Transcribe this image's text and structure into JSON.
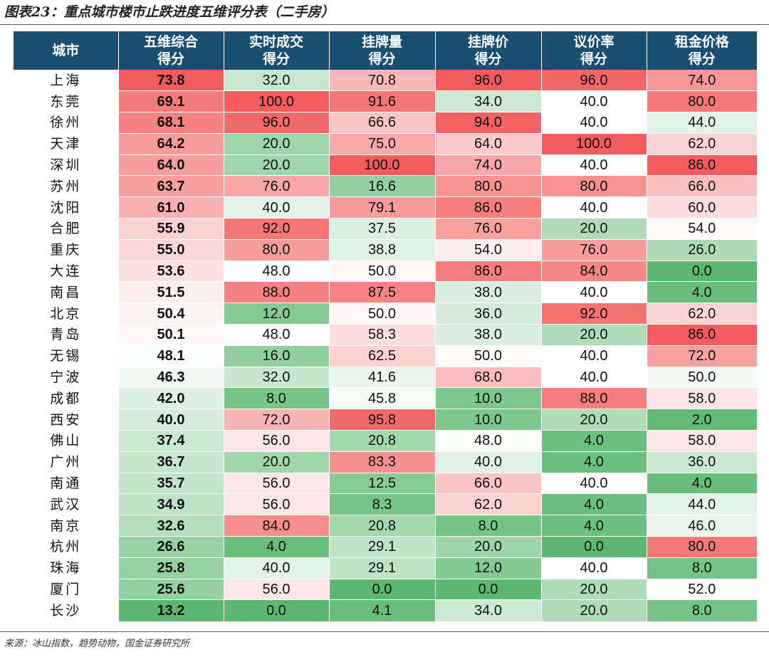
{
  "caption": "图表23：重点城市楼市止跌进度五维评分表（二手房）",
  "source": "来源：冰山指数，趋势动物，国金证券研究所",
  "colors": {
    "header_bg": "#1b4f72",
    "red_high": "#f25c5c",
    "white_mid": "#ffffff",
    "green_low": "#5cb870"
  },
  "table": {
    "headers": [
      [
        "城市"
      ],
      [
        "五维综合",
        "得分"
      ],
      [
        "实时成交",
        "得分"
      ],
      [
        "挂牌量",
        "得分"
      ],
      [
        "挂牌价",
        "得分"
      ],
      [
        "议价率",
        "得分"
      ],
      [
        "租金价格",
        "得分"
      ]
    ],
    "rows": [
      [
        "上海",
        "73.8",
        "32.0",
        "70.8",
        "96.0",
        "96.0",
        "74.0"
      ],
      [
        "东莞",
        "69.1",
        "100.0",
        "91.6",
        "34.0",
        "40.0",
        "80.0"
      ],
      [
        "徐州",
        "68.1",
        "96.0",
        "66.6",
        "94.0",
        "40.0",
        "44.0"
      ],
      [
        "天津",
        "64.2",
        "20.0",
        "75.0",
        "64.0",
        "100.0",
        "62.0"
      ],
      [
        "深圳",
        "64.0",
        "20.0",
        "100.0",
        "74.0",
        "40.0",
        "86.0"
      ],
      [
        "苏州",
        "63.7",
        "76.0",
        "16.6",
        "80.0",
        "80.0",
        "66.0"
      ],
      [
        "沈阳",
        "61.0",
        "40.0",
        "79.1",
        "86.0",
        "40.0",
        "60.0"
      ],
      [
        "合肥",
        "55.9",
        "92.0",
        "37.5",
        "76.0",
        "20.0",
        "54.0"
      ],
      [
        "重庆",
        "55.0",
        "80.0",
        "38.8",
        "54.0",
        "76.0",
        "26.0"
      ],
      [
        "大连",
        "53.6",
        "48.0",
        "50.0",
        "86.0",
        "84.0",
        "0.0"
      ],
      [
        "南昌",
        "51.5",
        "88.0",
        "87.5",
        "38.0",
        "40.0",
        "4.0"
      ],
      [
        "北京",
        "50.4",
        "12.0",
        "50.0",
        "36.0",
        "92.0",
        "62.0"
      ],
      [
        "青岛",
        "50.1",
        "48.0",
        "58.3",
        "38.0",
        "20.0",
        "86.0"
      ],
      [
        "无锡",
        "48.1",
        "16.0",
        "62.5",
        "50.0",
        "40.0",
        "72.0"
      ],
      [
        "宁波",
        "46.3",
        "32.0",
        "41.6",
        "68.0",
        "40.0",
        "50.0"
      ],
      [
        "成都",
        "42.0",
        "8.0",
        "45.8",
        "10.0",
        "88.0",
        "58.0"
      ],
      [
        "西安",
        "40.0",
        "72.0",
        "95.8",
        "10.0",
        "20.0",
        "2.0"
      ],
      [
        "佛山",
        "37.4",
        "56.0",
        "20.8",
        "48.0",
        "4.0",
        "58.0"
      ],
      [
        "广州",
        "36.7",
        "20.0",
        "83.3",
        "40.0",
        "4.0",
        "36.0"
      ],
      [
        "南通",
        "35.7",
        "56.0",
        "12.5",
        "66.0",
        "40.0",
        "4.0"
      ],
      [
        "武汉",
        "34.9",
        "56.0",
        "8.3",
        "62.0",
        "4.0",
        "44.0"
      ],
      [
        "南京",
        "32.6",
        "84.0",
        "20.8",
        "8.0",
        "4.0",
        "46.0"
      ],
      [
        "杭州",
        "26.6",
        "4.0",
        "29.1",
        "20.0",
        "0.0",
        "80.0"
      ],
      [
        "珠海",
        "25.8",
        "40.0",
        "29.1",
        "12.0",
        "40.0",
        "8.0"
      ],
      [
        "厦门",
        "25.6",
        "56.0",
        "0.0",
        "0.0",
        "20.0",
        "52.0"
      ],
      [
        "长沙",
        "13.2",
        "0.0",
        "4.1",
        "34.0",
        "20.0",
        "8.0"
      ]
    ]
  }
}
